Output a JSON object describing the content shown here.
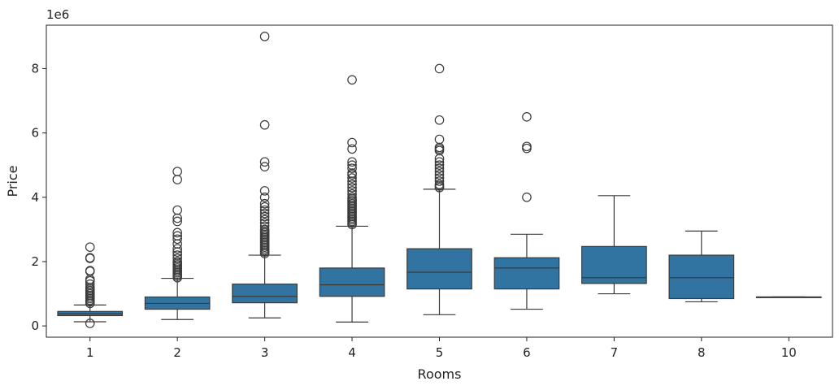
{
  "chart_data": {
    "type": "boxplot",
    "xlabel": "Rooms",
    "ylabel": "Price",
    "y_multiplier_label": "1e6",
    "ylim": [
      -0.35,
      9.35
    ],
    "yticks": [
      0,
      2,
      4,
      6,
      8
    ],
    "ytick_labels": [
      "0",
      "2",
      "4",
      "6",
      "8"
    ],
    "grid": false,
    "box_color": "#3274a1",
    "line_color": "#3a3a3a",
    "categories": [
      "1",
      "2",
      "3",
      "4",
      "5",
      "6",
      "7",
      "8",
      "10"
    ],
    "boxes": [
      {
        "category": "1",
        "whisker_low": 0.13,
        "q1": 0.32,
        "median": 0.38,
        "q3": 0.45,
        "whisker_high": 0.65,
        "outliers": [
          0.08,
          0.7,
          0.75,
          0.8,
          0.85,
          0.9,
          0.95,
          1.0,
          1.05,
          1.1,
          1.15,
          1.2,
          1.3,
          1.4,
          1.45,
          1.7,
          1.72,
          2.1,
          2.12,
          2.45
        ]
      },
      {
        "category": "2",
        "whisker_low": 0.2,
        "q1": 0.52,
        "median": 0.7,
        "q3": 0.9,
        "whisker_high": 1.48,
        "outliers": [
          1.5,
          1.55,
          1.6,
          1.65,
          1.7,
          1.75,
          1.8,
          1.85,
          1.9,
          1.95,
          2.0,
          2.1,
          2.2,
          2.3,
          2.4,
          2.55,
          2.7,
          2.8,
          2.9,
          3.25,
          3.35,
          3.6,
          4.55,
          4.8
        ]
      },
      {
        "category": "3",
        "whisker_low": 0.25,
        "q1": 0.72,
        "median": 0.92,
        "q3": 1.3,
        "whisker_high": 2.2,
        "outliers": [
          2.25,
          2.3,
          2.35,
          2.4,
          2.45,
          2.5,
          2.55,
          2.6,
          2.65,
          2.7,
          2.75,
          2.8,
          2.85,
          2.9,
          2.95,
          3.0,
          3.1,
          3.2,
          3.3,
          3.4,
          3.5,
          3.6,
          3.7,
          3.8,
          4.0,
          4.2,
          4.95,
          5.1,
          6.25,
          9.0
        ]
      },
      {
        "category": "4",
        "whisker_low": 0.12,
        "q1": 0.92,
        "median": 1.28,
        "q3": 1.8,
        "whisker_high": 3.1,
        "outliers": [
          3.15,
          3.2,
          3.25,
          3.3,
          3.35,
          3.4,
          3.45,
          3.5,
          3.55,
          3.6,
          3.65,
          3.7,
          3.75,
          3.8,
          3.85,
          3.9,
          3.95,
          4.0,
          4.1,
          4.2,
          4.3,
          4.4,
          4.5,
          4.6,
          4.7,
          4.75,
          4.9,
          5.0,
          5.1,
          5.5,
          5.7,
          7.65
        ]
      },
      {
        "category": "5",
        "whisker_low": 0.35,
        "q1": 1.15,
        "median": 1.67,
        "q3": 2.4,
        "whisker_high": 4.25,
        "outliers": [
          4.3,
          4.35,
          4.4,
          4.5,
          4.6,
          4.7,
          4.8,
          4.9,
          5.0,
          5.1,
          5.2,
          5.45,
          5.5,
          5.55,
          5.8,
          6.4,
          8.0
        ]
      },
      {
        "category": "6",
        "whisker_low": 0.52,
        "q1": 1.15,
        "median": 1.8,
        "q3": 2.12,
        "whisker_high": 2.85,
        "outliers": [
          4.0,
          5.52,
          5.58,
          6.5
        ]
      },
      {
        "category": "7",
        "whisker_low": 1.0,
        "q1": 1.32,
        "median": 1.5,
        "q3": 2.47,
        "whisker_high": 4.05,
        "outliers": []
      },
      {
        "category": "8",
        "whisker_low": 0.75,
        "q1": 0.85,
        "median": 1.5,
        "q3": 2.2,
        "whisker_high": 2.95,
        "outliers": []
      },
      {
        "category": "10",
        "whisker_low": 0.9,
        "q1": 0.9,
        "median": 0.9,
        "q3": 0.9,
        "whisker_high": 0.9,
        "outliers": []
      }
    ]
  }
}
